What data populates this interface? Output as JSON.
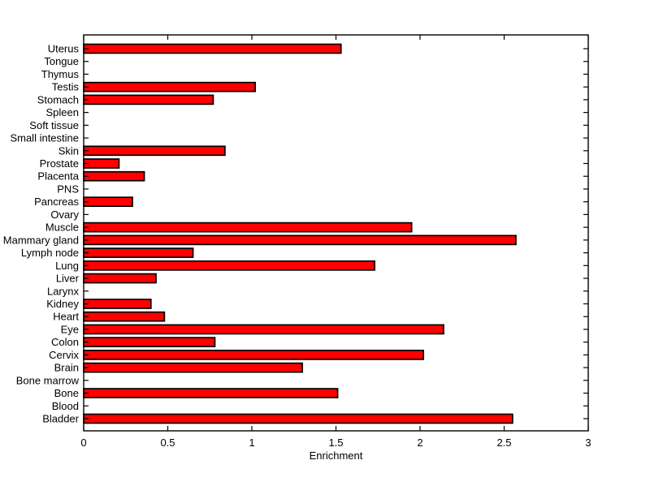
{
  "figure": {
    "background_color": "#FFFFFF"
  },
  "chart_data": {
    "type": "bar",
    "orientation": "horizontal",
    "title": "",
    "xlabel": "Enrichment",
    "ylabel": "",
    "xlim": [
      0,
      3
    ],
    "xticks": [
      0,
      0.5,
      1,
      1.5,
      2,
      2.5,
      3
    ],
    "grid": false,
    "legend": null,
    "bar_color": "#FF0000",
    "bar_edge_color": "#000000",
    "axis_color": "#000000",
    "category_order": "top-to-bottom",
    "categories": [
      "Uterus",
      "Tongue",
      "Thymus",
      "Testis",
      "Stomach",
      "Spleen",
      "Soft tissue",
      "Small intestine",
      "Skin",
      "Prostate",
      "Placenta",
      "PNS",
      "Pancreas",
      "Ovary",
      "Muscle",
      "Mammary gland",
      "Lymph node",
      "Lung",
      "Liver",
      "Larynx",
      "Kidney",
      "Heart",
      "Eye",
      "Colon",
      "Cervix",
      "Brain",
      "Bone marrow",
      "Bone",
      "Blood",
      "Bladder"
    ],
    "values": [
      1.53,
      0,
      0,
      1.02,
      0.77,
      0,
      0,
      0,
      0.84,
      0.21,
      0.36,
      0,
      0.29,
      0,
      1.95,
      2.57,
      0.65,
      1.73,
      0.43,
      0,
      0.4,
      0.48,
      2.14,
      0.78,
      2.02,
      1.3,
      0,
      1.51,
      0,
      2.55
    ]
  }
}
